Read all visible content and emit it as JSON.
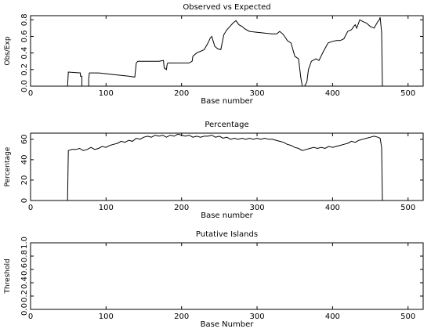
{
  "chart_data": [
    {
      "type": "line",
      "title": "Observed vs Expected",
      "xlabel": "Base number",
      "ylabel": "Obs/Exp",
      "xlim": [
        0,
        520
      ],
      "ylim": [
        0,
        0.85
      ],
      "xticks": [
        0,
        100,
        200,
        300,
        400,
        500
      ],
      "xtick_labels": [
        "0",
        "100",
        "200",
        "300",
        "400",
        "500"
      ],
      "yticks": [
        0,
        0.2,
        0.4,
        0.6,
        0.8
      ],
      "ytick_labels": [
        "0.0",
        "0.2",
        "0.4",
        "0.6",
        "0.8"
      ],
      "grid": false,
      "series": [
        {
          "x": [
            49,
            50,
            66,
            66,
            68,
            68,
            77,
            77,
            78,
            90,
            100,
            110,
            120,
            130,
            138,
            140,
            142,
            150,
            160,
            170,
            176,
            177,
            180,
            181,
            182,
            190,
            200,
            210,
            214,
            215,
            220,
            225,
            230,
            235,
            238,
            240,
            244,
            248,
            252,
            256,
            260,
            264,
            268,
            272,
            276,
            280,
            284,
            290,
            300,
            310,
            320,
            326,
            330,
            334,
            338,
            340,
            345,
            350,
            355,
            358,
            360,
            363,
            366,
            368,
            372,
            378,
            382,
            388,
            394,
            400,
            405,
            410,
            415,
            420,
            425,
            428,
            430,
            432,
            436,
            440,
            445,
            450,
            455,
            460,
            462,
            463,
            465,
            466
          ],
          "y": [
            0,
            0.17,
            0.16,
            0.12,
            0.12,
            0,
            0,
            0.09,
            0.16,
            0.16,
            0.15,
            0.14,
            0.13,
            0.12,
            0.11,
            0.28,
            0.3,
            0.3,
            0.3,
            0.3,
            0.31,
            0.22,
            0.2,
            0.27,
            0.28,
            0.28,
            0.28,
            0.28,
            0.3,
            0.36,
            0.4,
            0.42,
            0.44,
            0.52,
            0.58,
            0.6,
            0.48,
            0.45,
            0.44,
            0.62,
            0.68,
            0.72,
            0.76,
            0.79,
            0.74,
            0.72,
            0.69,
            0.66,
            0.65,
            0.64,
            0.63,
            0.63,
            0.66,
            0.63,
            0.58,
            0.55,
            0.52,
            0.36,
            0.33,
            0.1,
            0,
            0,
            0.05,
            0.2,
            0.3,
            0.33,
            0.31,
            0.42,
            0.52,
            0.54,
            0.55,
            0.55,
            0.57,
            0.66,
            0.68,
            0.72,
            0.74,
            0.7,
            0.8,
            0.78,
            0.76,
            0.72,
            0.7,
            0.78,
            0.8,
            0.83,
            0.65,
            0
          ]
        }
      ]
    },
    {
      "type": "line",
      "title": "Percentage",
      "xlabel": "Base number",
      "ylabel": "Percentage",
      "xlim": [
        0,
        520
      ],
      "ylim": [
        0,
        66
      ],
      "xticks": [
        0,
        100,
        200,
        300,
        400,
        500
      ],
      "xtick_labels": [
        "0",
        "100",
        "200",
        "300",
        "400",
        "500"
      ],
      "yticks": [
        0,
        20,
        40,
        60
      ],
      "ytick_labels": [
        "0",
        "20",
        "40",
        "60"
      ],
      "grid": false,
      "series": [
        {
          "x": [
            49,
            50,
            55,
            60,
            65,
            70,
            75,
            80,
            85,
            90,
            95,
            100,
            105,
            110,
            115,
            120,
            125,
            130,
            135,
            140,
            145,
            150,
            155,
            160,
            165,
            170,
            175,
            180,
            185,
            190,
            195,
            200,
            205,
            210,
            215,
            220,
            225,
            230,
            235,
            240,
            245,
            250,
            255,
            260,
            265,
            270,
            275,
            280,
            285,
            290,
            295,
            300,
            305,
            310,
            315,
            320,
            325,
            330,
            335,
            340,
            345,
            350,
            355,
            360,
            365,
            370,
            375,
            380,
            385,
            390,
            395,
            400,
            405,
            410,
            415,
            420,
            425,
            430,
            435,
            440,
            445,
            450,
            455,
            460,
            463,
            465,
            466
          ],
          "y": [
            0,
            49,
            50,
            50,
            51,
            49,
            50,
            52,
            50,
            51,
            53,
            52,
            54,
            55,
            56,
            58,
            57,
            59,
            58,
            61,
            60,
            62,
            63,
            62,
            64,
            63,
            64,
            62,
            64,
            63,
            65,
            64,
            63,
            64,
            62,
            63,
            62,
            63,
            63,
            64,
            62,
            63,
            61,
            62,
            60,
            61,
            60,
            61,
            60,
            61,
            60,
            61,
            60,
            61,
            60,
            60,
            59,
            58,
            57,
            55,
            54,
            52,
            51,
            49,
            50,
            51,
            52,
            51,
            52,
            51,
            53,
            52,
            53,
            54,
            55,
            56,
            58,
            57,
            59,
            60,
            61,
            62,
            63,
            62,
            61,
            52,
            0
          ]
        }
      ]
    },
    {
      "type": "line",
      "title": "Putative Islands",
      "xlabel": "Base Number",
      "ylabel": "Threshold",
      "xlim": [
        0,
        520
      ],
      "ylim": [
        0,
        1
      ],
      "xticks": [
        0,
        100,
        200,
        300,
        400,
        500
      ],
      "xtick_labels": [
        "0",
        "100",
        "200",
        "300",
        "400",
        "500"
      ],
      "yticks": [
        0,
        0.2,
        0.4,
        0.6,
        0.8,
        1.0
      ],
      "ytick_labels": [
        "0.0",
        "0.2",
        "0.4",
        "0.6",
        "0.8",
        "1.0"
      ],
      "grid": false,
      "series": []
    }
  ]
}
